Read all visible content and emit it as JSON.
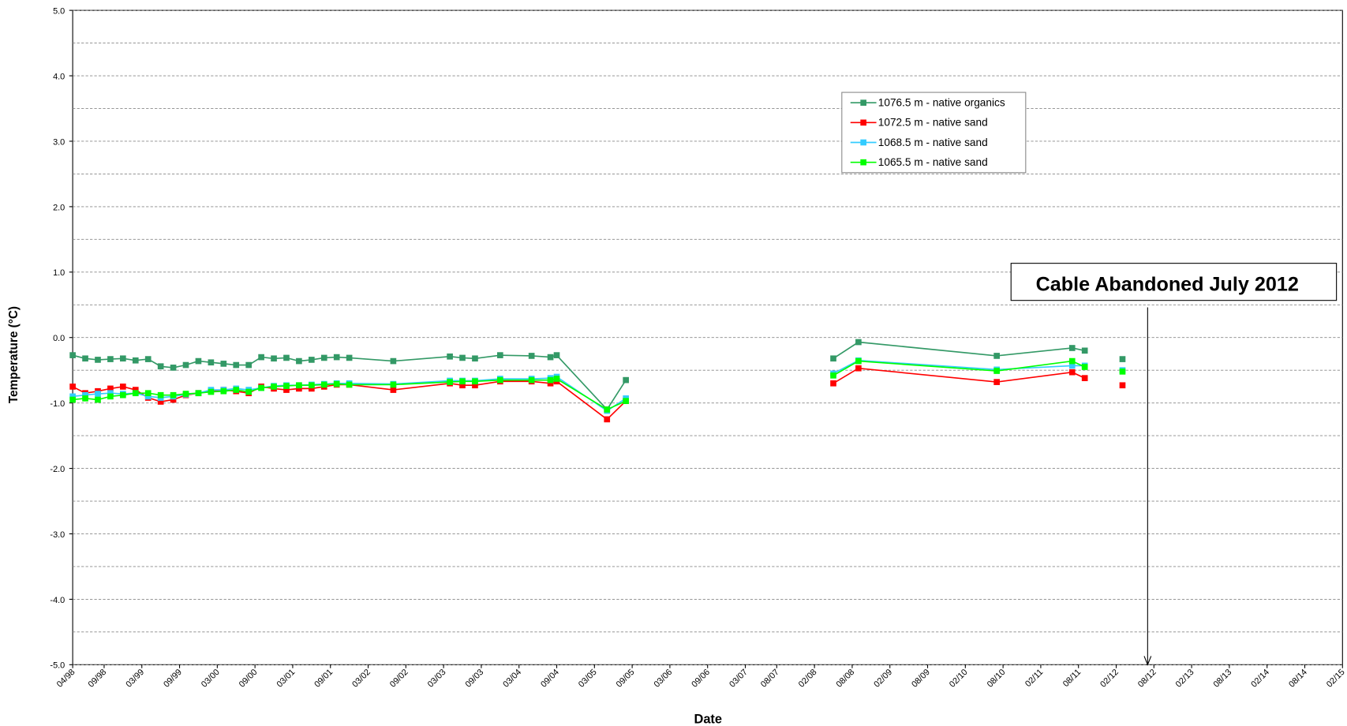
{
  "chart_data": {
    "type": "line",
    "y_label": "Temperature (°C)",
    "x_label": "Date",
    "ylim": [
      -5,
      5
    ],
    "yticks": [
      {
        "value": -5,
        "label": "-5.0"
      },
      {
        "value": -4,
        "label": "-4.0"
      },
      {
        "value": -3,
        "label": "-3.0"
      },
      {
        "value": -2,
        "label": "-2.0"
      },
      {
        "value": -1,
        "label": "-1.0"
      },
      {
        "value": 0,
        "label": "0.0"
      },
      {
        "value": 1,
        "label": "1.0"
      },
      {
        "value": 2,
        "label": "2.0"
      },
      {
        "value": 3,
        "label": "3.0"
      },
      {
        "value": 4,
        "label": "4.0"
      },
      {
        "value": 5,
        "label": "5.0"
      }
    ],
    "yminor_ticks": [
      -4.5,
      -3.5,
      -2.5,
      -1.5,
      -0.5,
      0.5,
      1.5,
      2.5,
      3.5,
      4.5
    ],
    "grid": true,
    "xlim": [
      "1998-04",
      "2015-02"
    ],
    "xticks": [
      {
        "value": "1998-04",
        "label": "04/98"
      },
      {
        "value": "1998-09",
        "label": "09/98"
      },
      {
        "value": "1999-03",
        "label": "03/99"
      },
      {
        "value": "1999-09",
        "label": "09/99"
      },
      {
        "value": "2000-03",
        "label": "03/00"
      },
      {
        "value": "2000-09",
        "label": "09/00"
      },
      {
        "value": "2001-03",
        "label": "03/01"
      },
      {
        "value": "2001-09",
        "label": "09/01"
      },
      {
        "value": "2002-03",
        "label": "03/02"
      },
      {
        "value": "2002-09",
        "label": "09/02"
      },
      {
        "value": "2003-03",
        "label": "03/03"
      },
      {
        "value": "2003-09",
        "label": "09/03"
      },
      {
        "value": "2004-03",
        "label": "03/04"
      },
      {
        "value": "2004-09",
        "label": "09/04"
      },
      {
        "value": "2005-03",
        "label": "03/05"
      },
      {
        "value": "2005-09",
        "label": "09/05"
      },
      {
        "value": "2006-03",
        "label": "03/06"
      },
      {
        "value": "2006-09",
        "label": "09/06"
      },
      {
        "value": "2007-03",
        "label": "03/07"
      },
      {
        "value": "2007-08",
        "label": "08/07"
      },
      {
        "value": "2008-02",
        "label": "02/08"
      },
      {
        "value": "2008-08",
        "label": "08/08"
      },
      {
        "value": "2009-02",
        "label": "02/09"
      },
      {
        "value": "2009-08",
        "label": "08/09"
      },
      {
        "value": "2010-02",
        "label": "02/10"
      },
      {
        "value": "2010-08",
        "label": "08/10"
      },
      {
        "value": "2011-02",
        "label": "02/11"
      },
      {
        "value": "2011-08",
        "label": "08/11"
      },
      {
        "value": "2012-02",
        "label": "02/12"
      },
      {
        "value": "2012-08",
        "label": "08/12"
      },
      {
        "value": "2013-02",
        "label": "02/13"
      },
      {
        "value": "2013-08",
        "label": "08/13"
      },
      {
        "value": "2014-02",
        "label": "02/14"
      },
      {
        "value": "2014-08",
        "label": "08/14"
      },
      {
        "value": "2015-02",
        "label": "02/15"
      }
    ],
    "x": [
      "1998-04",
      "1998-06",
      "1998-08",
      "1998-10",
      "1998-12",
      "1999-02",
      "1999-04",
      "1999-06",
      "1999-08",
      "1999-10",
      "1999-12",
      "2000-02",
      "2000-04",
      "2000-06",
      "2000-08",
      "2000-10",
      "2000-12",
      "2001-02",
      "2001-04",
      "2001-06",
      "2001-08",
      "2001-10",
      "2001-12",
      "2002-07",
      "2003-04",
      "2003-06",
      "2003-08",
      "2003-12",
      "2004-05",
      "2004-08",
      "2004-09",
      "2005-05",
      "2005-08",
      "2006-12",
      "2008-05",
      "2008-09",
      "2010-07",
      "2011-07",
      "2011-09",
      "2011-12",
      "2012-03"
    ],
    "series": [
      {
        "name": "1076.5 m - native organics",
        "color": "#339966",
        "values": [
          -0.27,
          -0.32,
          -0.34,
          -0.33,
          -0.32,
          -0.35,
          -0.33,
          -0.44,
          -0.46,
          -0.42,
          -0.36,
          -0.38,
          -0.4,
          -0.42,
          -0.42,
          -0.3,
          -0.32,
          -0.31,
          -0.36,
          -0.34,
          -0.31,
          -0.3,
          -0.31,
          -0.36,
          -0.29,
          -0.31,
          -0.32,
          -0.27,
          -0.28,
          -0.3,
          -0.27,
          -1.1,
          -0.65,
          null,
          -0.32,
          -0.07,
          -0.28,
          -0.16,
          -0.2,
          null,
          -0.33
        ]
      },
      {
        "name": "1072.5 m - native sand",
        "color": "#ff0000",
        "values": [
          -0.75,
          -0.85,
          -0.82,
          -0.78,
          -0.75,
          -0.8,
          -0.92,
          -0.98,
          -0.95,
          -0.88,
          -0.85,
          -0.82,
          -0.8,
          -0.82,
          -0.85,
          -0.75,
          -0.78,
          -0.8,
          -0.78,
          -0.78,
          -0.75,
          -0.72,
          -0.72,
          -0.8,
          -0.7,
          -0.73,
          -0.73,
          -0.67,
          -0.67,
          -0.7,
          -0.67,
          -1.25,
          -0.97,
          null,
          -0.7,
          -0.47,
          -0.68,
          -0.53,
          -0.62,
          null,
          -0.73
        ]
      },
      {
        "name": "1068.5 m - native sand",
        "color": "#33ccff",
        "values": [
          -0.9,
          -0.88,
          -0.86,
          -0.85,
          -0.86,
          -0.85,
          -0.9,
          -0.92,
          -0.9,
          -0.87,
          -0.85,
          -0.8,
          -0.8,
          -0.78,
          -0.8,
          -0.77,
          -0.74,
          -0.73,
          -0.73,
          -0.72,
          -0.71,
          -0.7,
          -0.7,
          -0.71,
          -0.66,
          -0.66,
          -0.66,
          -0.63,
          -0.63,
          -0.62,
          -0.6,
          -1.12,
          -0.93,
          null,
          -0.55,
          -0.35,
          -0.49,
          -0.43,
          -0.43,
          null,
          -0.5
        ]
      },
      {
        "name": "1065.5 m - native sand",
        "color": "#00ff00",
        "values": [
          -0.95,
          -0.93,
          -0.95,
          -0.9,
          -0.88,
          -0.85,
          -0.85,
          -0.88,
          -0.88,
          -0.86,
          -0.85,
          -0.83,
          -0.82,
          -0.8,
          -0.83,
          -0.77,
          -0.75,
          -0.74,
          -0.73,
          -0.73,
          -0.72,
          -0.71,
          -0.72,
          -0.72,
          -0.68,
          -0.67,
          -0.67,
          -0.65,
          -0.65,
          -0.65,
          -0.63,
          -1.1,
          -0.97,
          null,
          -0.58,
          -0.36,
          -0.51,
          -0.36,
          -0.45,
          null,
          -0.52
        ]
      }
    ],
    "annotation": {
      "text": "Cable Abandoned July 2012",
      "x": "2012-07"
    }
  }
}
